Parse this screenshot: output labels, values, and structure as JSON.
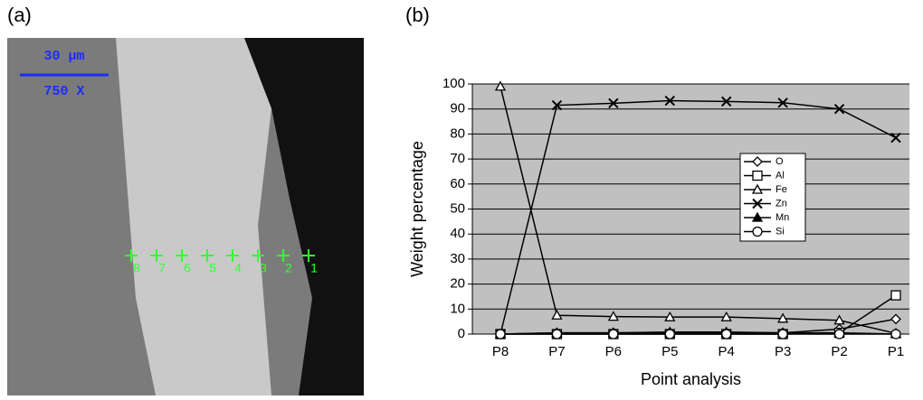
{
  "image_panel": {
    "label": "(a)",
    "scale_bar": "30 μm",
    "magnification": "750 X",
    "points": [
      "8",
      "7",
      "6",
      "5",
      "4",
      "3",
      "2",
      "1"
    ]
  },
  "chart_data": {
    "type": "line",
    "panel_label": "(b)",
    "x_label": "Point analysis",
    "y_label": "Weight percentage",
    "categories": [
      "P8",
      "P7",
      "P6",
      "P5",
      "P4",
      "P3",
      "P2",
      "P1"
    ],
    "ylim": [
      0,
      100
    ],
    "yticks": [
      0,
      10,
      20,
      30,
      40,
      50,
      60,
      70,
      80,
      90,
      100
    ],
    "grid": true,
    "legend_position": "center-right",
    "series": [
      {
        "name": "O",
        "color": "#000000",
        "marker": "diamond",
        "values": [
          0,
          0.5,
          0.5,
          0.5,
          0.5,
          0.5,
          2,
          6
        ]
      },
      {
        "name": "Al",
        "color": "#000000",
        "marker": "square",
        "values": [
          0,
          0,
          0,
          0,
          0,
          0,
          0.5,
          15.5
        ]
      },
      {
        "name": "Fe",
        "color": "#000000",
        "marker": "triangle",
        "values": [
          99,
          7.5,
          7,
          6.8,
          6.8,
          6.2,
          5.5,
          0.3
        ]
      },
      {
        "name": "Zn",
        "color": "#000000",
        "marker": "x",
        "values": [
          0,
          91.5,
          92.3,
          93.3,
          93,
          92.5,
          90,
          78.5
        ]
      },
      {
        "name": "Mn",
        "color": "#000000",
        "marker": "filled-triangle",
        "values": [
          0,
          0.5,
          0.5,
          0.8,
          0.8,
          0.5,
          0.5,
          0
        ]
      },
      {
        "name": "Si",
        "color": "#000000",
        "marker": "circle",
        "values": [
          0,
          0,
          0,
          0,
          0,
          0,
          0,
          0
        ]
      }
    ]
  }
}
